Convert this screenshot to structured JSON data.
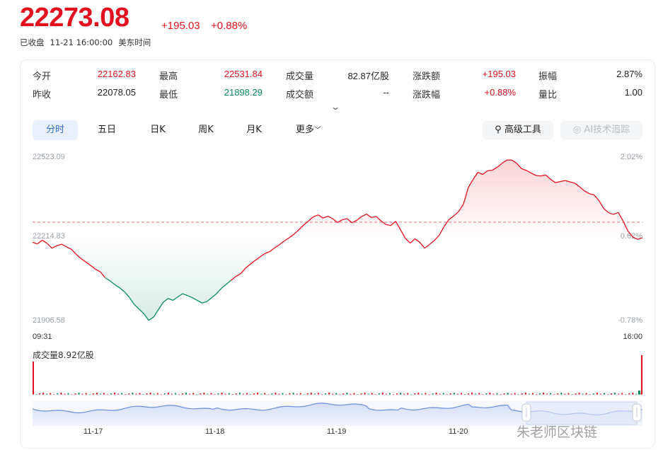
{
  "header": {
    "price": "22273.08",
    "change": "+195.03",
    "change_pct": "+0.88%",
    "status": "已收盘",
    "datetime": "11-21 16:00:00",
    "timezone": "美东时间"
  },
  "stats": {
    "open_label": "今开",
    "open": "22162.83",
    "high_label": "最高",
    "high": "22531.84",
    "volume_label": "成交量",
    "volume": "82.87亿股",
    "change_label": "涨跌额",
    "change": "+195.03",
    "amplitude_label": "振幅",
    "amplitude": "2.87%",
    "prev_close_label": "昨收",
    "prev_close": "22078.05",
    "low_label": "最低",
    "low": "21898.29",
    "turnover_label": "成交额",
    "turnover": "--",
    "change_pct_label": "涨跌幅",
    "change_pct": "+0.88%",
    "vol_ratio_label": "量比",
    "vol_ratio": "1.00"
  },
  "tabs": [
    "分时",
    "五日",
    "日K",
    "周K",
    "月K",
    "更多"
  ],
  "tools": {
    "advanced": "高级工具",
    "ai_trace": "AI技术追踪"
  },
  "chart_labels": {
    "y_top": "22523.09",
    "y_mid": "22214.83",
    "y_bottom": "21906.58",
    "pct_top": "2.02%",
    "pct_mid": "0.62%",
    "pct_bottom": "-0.78%",
    "time_start": "09:31",
    "time_end": "16:00",
    "volume_label": "成交量8.92亿股"
  },
  "navigator_dates": [
    "11-17",
    "11-18",
    "11-19",
    "11-20"
  ],
  "watermark": "朱老师区块链",
  "colors": {
    "up": "#e1111f",
    "down": "#0a8a5a",
    "accent": "#2f6bd8"
  },
  "chart_data": {
    "type": "line",
    "title": "",
    "xlabel": "",
    "ylabel": "",
    "x_range": [
      "09:31",
      "16:00"
    ],
    "ylim": [
      21906.58,
      22523.09
    ],
    "reference": 22214.83,
    "series": [
      {
        "values": [
          22203,
          22197,
          22211,
          22199,
          22181,
          22190,
          22196,
          22186,
          22177,
          22158,
          22142,
          22129,
          22116,
          22102,
          22092,
          22070,
          22058,
          22044,
          22032,
          22017,
          21996,
          21970,
          21952,
          21935,
          21910,
          21922,
          21950,
          21978,
          21992,
          21985,
          21998,
          22010,
          22003,
          21995,
          21985,
          21975,
          21980,
          21995,
          22010,
          22030,
          22045,
          22060,
          22075,
          22085,
          22106,
          22121,
          22135,
          22148,
          22161,
          22168,
          22182,
          22194,
          22208,
          22220,
          22233,
          22250,
          22268,
          22283,
          22299,
          22306,
          22294,
          22301,
          22292,
          22277,
          22288,
          22292,
          22276,
          22286,
          22300,
          22309,
          22296,
          22300,
          22283,
          22270,
          22266,
          22282,
          22251,
          22218,
          22200,
          22216,
          22203,
          22181,
          22195,
          22210,
          22229,
          22262,
          22288,
          22302,
          22318,
          22346,
          22408,
          22439,
          22466,
          22458,
          22472,
          22474,
          22485,
          22500,
          22512,
          22512,
          22500,
          22480,
          22473,
          22463,
          22454,
          22452,
          22456,
          22440,
          22427,
          22431,
          22435,
          22430,
          22425,
          22412,
          22396,
          22386,
          22381,
          22360,
          22330,
          22314,
          22308,
          22315,
          22283,
          22245,
          22223,
          22214,
          22220
        ]
      }
    ]
  }
}
